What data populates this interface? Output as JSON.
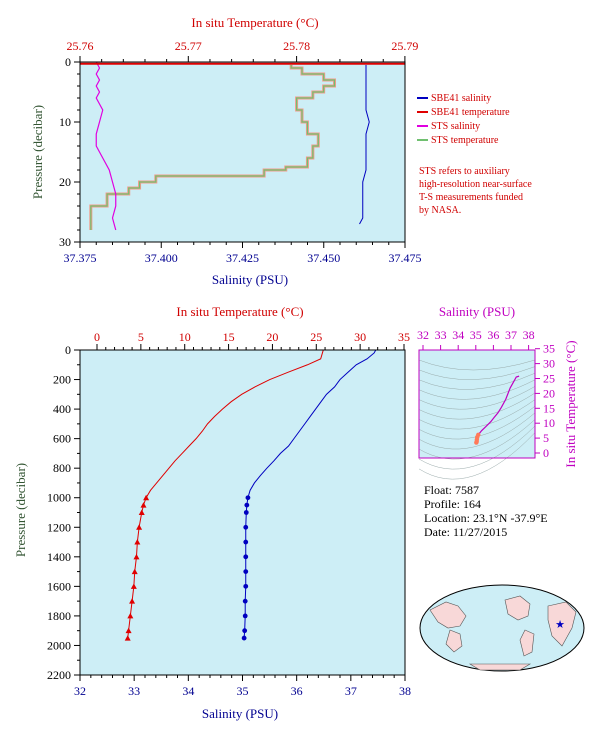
{
  "colors": {
    "panel_bg": "#cdeef6",
    "sbe_salinity": "#0000c0",
    "sbe_temperature": "#e00000",
    "sts_salinity": "#e000e0",
    "sts_temperature": "#70c070",
    "sts_temp_light": "#f29a8a",
    "label_red": "#d00000",
    "label_blue": "#000090",
    "label_green": "#335533",
    "label_magenta": "#c000c0"
  },
  "top": {
    "temp_axis_title": "In situ Temperature (°C)",
    "sal_axis_title": "Salinity (PSU)",
    "pressure_axis_title": "Pressure (decibar)",
    "temp_ticks": [
      "25.76",
      "25.77",
      "25.78",
      "25.79"
    ],
    "sal_ticks": [
      "37.375",
      "37.400",
      "37.425",
      "37.450",
      "37.475"
    ],
    "pressure_ticks": [
      "0",
      "10",
      "20",
      "30"
    ],
    "legend": {
      "sbe_salinity": "SBE41 salinity",
      "sbe_temperature": "SBE41 temperature",
      "sts_salinity": "STS salinity",
      "sts_temperature": "STS temperature"
    },
    "note": [
      "STS refers to auxiliary",
      "high-resolution near-surface",
      "T-S measurements funded",
      "by NASA."
    ]
  },
  "bottom": {
    "temp_axis_title": "In situ Temperature (°C)",
    "sal_axis_title": "Salinity (PSU)",
    "pressure_axis_title": "Pressure (decibar)",
    "temp_ticks": [
      "0",
      "5",
      "10",
      "15",
      "20",
      "25",
      "30",
      "35"
    ],
    "sal_ticks": [
      "32",
      "33",
      "34",
      "35",
      "36",
      "37",
      "38"
    ],
    "pressure_ticks": [
      "0",
      "200",
      "400",
      "600",
      "800",
      "1000",
      "1200",
      "1400",
      "1600",
      "1800",
      "2000",
      "2200"
    ]
  },
  "ts_panel": {
    "sal_axis_title": "Salinity (PSU)",
    "temp_axis_title": "In situ Temperature (°C)",
    "sal_ticks": [
      "32",
      "33",
      "34",
      "35",
      "36",
      "37",
      "38"
    ],
    "temp_ticks": [
      "0",
      "5",
      "10",
      "15",
      "20",
      "25",
      "30",
      "35"
    ]
  },
  "info": {
    "float": "Float:  7587",
    "profile": "Profile:  164",
    "location": "Location:  23.1°N  -37.9°E",
    "date": "Date:  11/27/2015"
  },
  "chart_data": [
    {
      "type": "line",
      "title": "",
      "y_label": "Pressure (decibar)",
      "x_label_bottom": "Salinity (PSU)",
      "x_label_top": "In situ Temperature (°C)",
      "salinity_range": [
        37.375,
        37.475
      ],
      "temperature_range": [
        25.755,
        25.79
      ],
      "pressure_range": [
        30,
        0
      ],
      "series": [
        {
          "name": "SBE41 salinity",
          "pressure": [
            0.5,
            2,
            4,
            6,
            8,
            10,
            12,
            14,
            16,
            18,
            20,
            22,
            24,
            26,
            27
          ],
          "salinity": [
            37.463,
            37.463,
            37.463,
            37.463,
            37.463,
            37.464,
            37.463,
            37.463,
            37.463,
            37.463,
            37.462,
            37.462,
            37.462,
            37.462,
            37.461
          ]
        },
        {
          "name": "SBE41 temperature",
          "pressure": [
            0.3
          ],
          "temperature": [
            25.79
          ]
        },
        {
          "name": "STS salinity",
          "pressure": [
            0,
            1,
            2,
            3,
            4,
            5,
            6,
            8,
            10,
            12,
            14,
            16,
            18,
            20,
            22,
            24,
            26,
            28
          ],
          "salinity": [
            37.38,
            37.381,
            37.38,
            37.381,
            37.38,
            37.381,
            37.38,
            37.382,
            37.381,
            37.38,
            37.38,
            37.382,
            37.384,
            37.385,
            37.386,
            37.386,
            37.385,
            37.386
          ]
        },
        {
          "name": "STS temperature",
          "pressure": [
            0.5,
            1,
            2,
            3,
            4,
            5,
            6,
            8,
            10,
            12,
            14,
            16,
            17.5,
            18,
            19,
            20,
            21,
            22,
            24,
            26,
            28
          ],
          "temperature": [
            25.7795,
            25.7805,
            25.7825,
            25.7835,
            25.7825,
            25.7815,
            25.78,
            25.7805,
            25.781,
            25.782,
            25.7815,
            25.781,
            25.779,
            25.777,
            25.767,
            25.7655,
            25.7645,
            25.7625,
            25.761,
            25.761,
            25.761
          ]
        }
      ]
    },
    {
      "type": "line",
      "title": "",
      "y_label": "Pressure (decibar)",
      "x_label_bottom": "Salinity (PSU)",
      "x_label_top": "In situ Temperature (°C)",
      "salinity_range": [
        32,
        38
      ],
      "temperature_range": [
        -2,
        35
      ],
      "pressure_range": [
        2200,
        0
      ],
      "series": [
        {
          "name": "Temperature",
          "pressure": [
            0,
            20,
            60,
            100,
            150,
            200,
            250,
            300,
            350,
            400,
            450,
            500,
            550,
            600,
            650,
            700,
            750,
            800,
            850,
            900,
            950,
            1000,
            1050,
            1100,
            1200,
            1300,
            1400,
            1500,
            1600,
            1700,
            1800,
            1900,
            1950
          ],
          "temperature": [
            25.8,
            25.7,
            25.5,
            24.0,
            21.8,
            19.7,
            18.0,
            16.5,
            15.3,
            14.3,
            13.4,
            12.6,
            12.0,
            11.3,
            10.5,
            9.7,
            8.9,
            8.2,
            7.5,
            6.8,
            6.1,
            5.6,
            5.3,
            5.1,
            4.8,
            4.6,
            4.5,
            4.3,
            4.2,
            4.0,
            3.8,
            3.6,
            3.5
          ]
        },
        {
          "name": "Salinity",
          "pressure": [
            0,
            20,
            60,
            100,
            150,
            200,
            250,
            300,
            350,
            400,
            450,
            500,
            550,
            600,
            650,
            700,
            750,
            800,
            850,
            900,
            950,
            1000,
            1050,
            1100,
            1200,
            1300,
            1400,
            1500,
            1600,
            1700,
            1800,
            1900,
            1950
          ],
          "salinity": [
            37.46,
            37.43,
            37.3,
            37.1,
            36.95,
            36.8,
            36.7,
            36.55,
            36.45,
            36.35,
            36.25,
            36.15,
            36.05,
            35.95,
            35.85,
            35.7,
            35.58,
            35.45,
            35.33,
            35.22,
            35.14,
            35.1,
            35.08,
            35.07,
            35.06,
            35.06,
            35.06,
            35.06,
            35.06,
            35.05,
            35.05,
            35.04,
            35.03
          ]
        }
      ]
    },
    {
      "type": "line",
      "title": "",
      "x_label": "Salinity (PSU)",
      "y_label": "In situ Temperature (°C)",
      "x_range": [
        32,
        38
      ],
      "y_range": [
        -2,
        35
      ],
      "series": [
        {
          "name": "T-S",
          "salinity": [
            37.46,
            37.3,
            36.95,
            36.7,
            36.45,
            36.25,
            36.05,
            35.85,
            35.58,
            35.33,
            35.14,
            35.08,
            35.06,
            35.05,
            35.03
          ],
          "temperature": [
            25.8,
            25.5,
            21.8,
            18.0,
            15.3,
            13.4,
            12.0,
            10.5,
            8.9,
            7.5,
            6.1,
            5.3,
            4.5,
            3.8,
            3.5
          ]
        }
      ]
    }
  ]
}
